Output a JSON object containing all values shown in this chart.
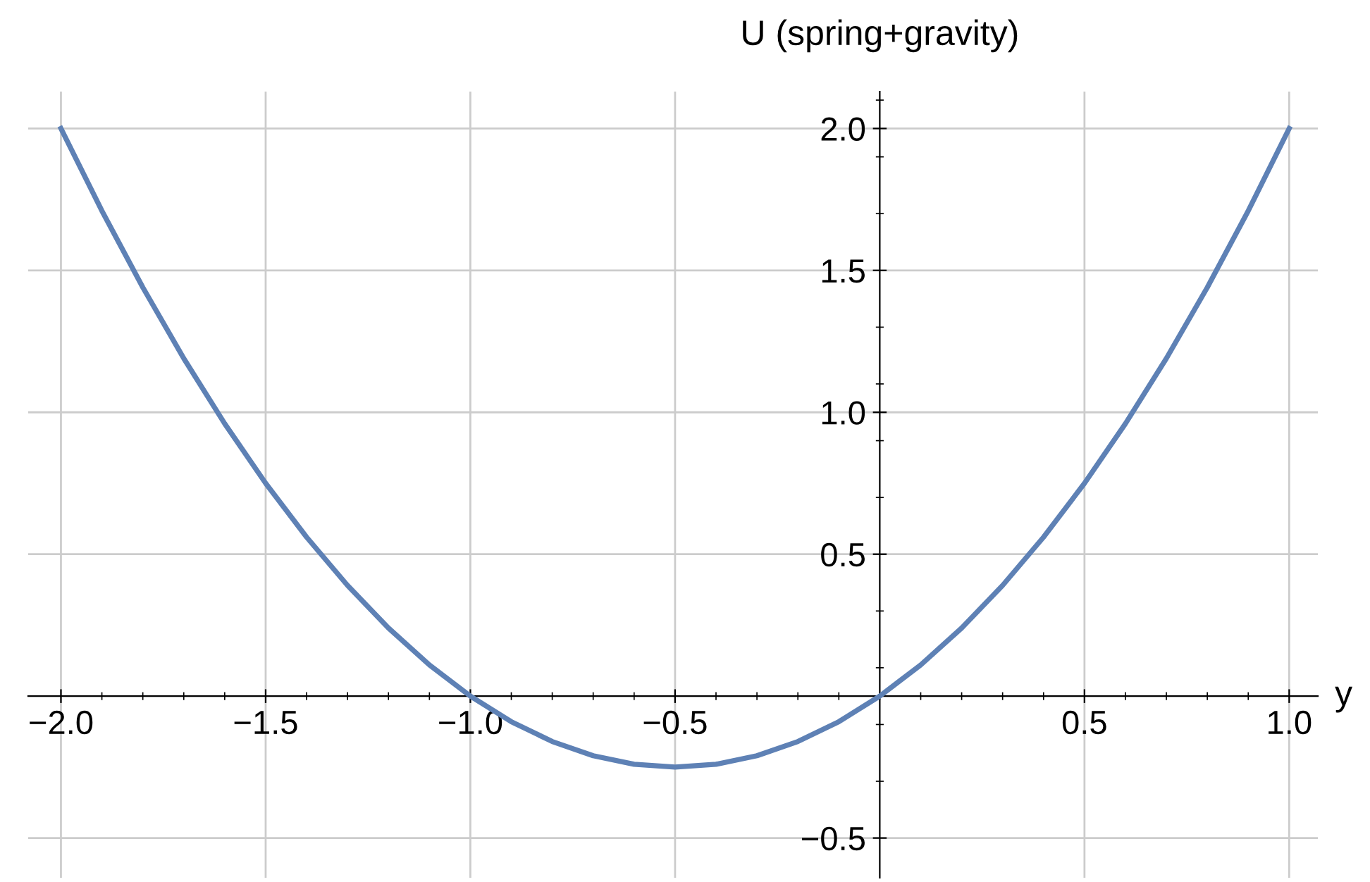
{
  "chart_data": {
    "type": "line",
    "xlabel": "y",
    "ylabel": "U (spring+gravity)",
    "x": [
      -2.0,
      -1.9,
      -1.8,
      -1.7,
      -1.6,
      -1.5,
      -1.4,
      -1.3,
      -1.2,
      -1.1,
      -1.0,
      -0.9,
      -0.8,
      -0.7,
      -0.6,
      -0.5,
      -0.4,
      -0.3,
      -0.2,
      -0.1,
      0.0,
      0.1,
      0.2,
      0.3,
      0.4,
      0.5,
      0.6,
      0.7,
      0.8,
      0.9,
      1.0
    ],
    "series": [
      {
        "color": "#5e81b5",
        "values": [
          2.0,
          1.71,
          1.44,
          1.19,
          0.96,
          0.75,
          0.56,
          0.39,
          0.24,
          0.11,
          0.0,
          -0.09,
          -0.16,
          -0.21,
          -0.24,
          -0.25,
          -0.24,
          -0.21,
          -0.16,
          -0.09,
          0.0,
          0.11,
          0.24,
          0.39,
          0.56,
          0.75,
          0.96,
          1.19,
          1.44,
          1.71,
          2.0
        ]
      }
    ],
    "xlim": [
      -2.08,
      1.07
    ],
    "ylim": [
      -0.64,
      2.13
    ],
    "xticks": [
      {
        "value": -2.0,
        "label": "−2.0"
      },
      {
        "value": -1.5,
        "label": "−1.5"
      },
      {
        "value": -1.0,
        "label": "−1.0"
      },
      {
        "value": -0.5,
        "label": "−0.5"
      },
      0.5,
      {
        "value": 1.0,
        "label": "1.0"
      }
    ],
    "yticks": [
      {
        "value": -0.5,
        "label": "−0.5"
      },
      0.5,
      {
        "value": 1.0,
        "label": "1.0"
      },
      1.5,
      {
        "value": 2.0,
        "label": "2.0"
      }
    ],
    "grid": true,
    "marker": "none",
    "line_style": "solid"
  }
}
